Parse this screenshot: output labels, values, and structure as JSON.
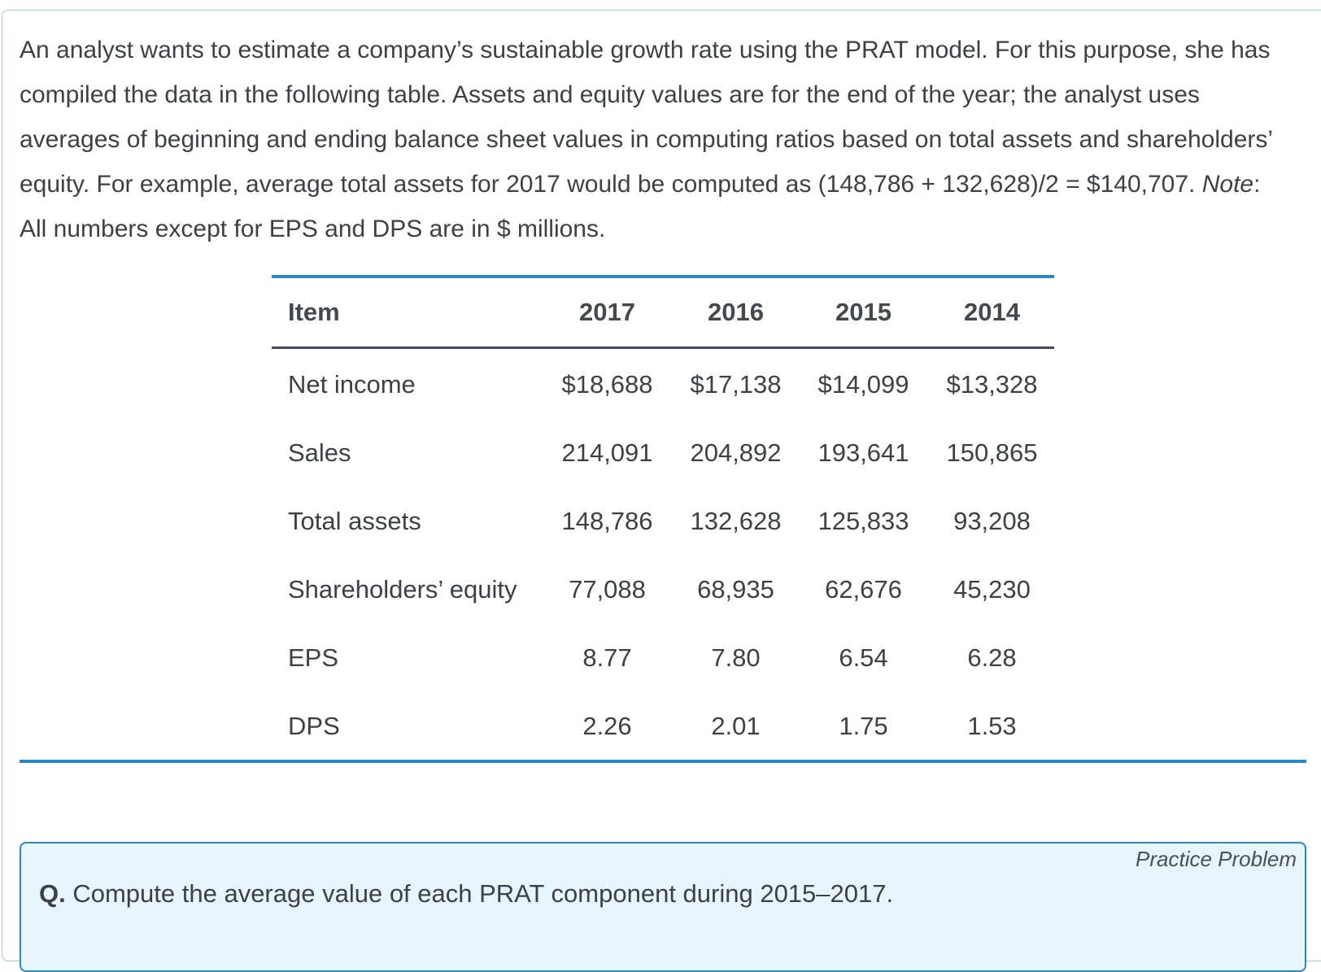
{
  "intro": {
    "part1": "An analyst wants to estimate a company’s sustainable growth rate using the PRAT model. For this purpose, she has compiled the data in the following table. Assets and equity values are for the end of the year; the analyst uses averages of beginning and ending balance sheet values in computing ratios based on total assets and shareholders’ equity. For example, average total assets for 2017 would be computed as (148,786 + 132,628)/2 = $140,707. ",
    "note_label": "Note",
    "part2": ": All numbers except for EPS and DPS are in $ millions."
  },
  "table": {
    "headers": [
      "Item",
      "2017",
      "2016",
      "2015",
      "2014"
    ],
    "rows": [
      {
        "item": "Net income",
        "values": [
          "$18,688",
          "$17,138",
          "$14,099",
          "$13,328"
        ]
      },
      {
        "item": "Sales",
        "values": [
          "214,091",
          "204,892",
          "193,641",
          "150,865"
        ]
      },
      {
        "item": "Total assets",
        "values": [
          "148,786",
          "132,628",
          "125,833",
          "93,208"
        ]
      },
      {
        "item": "Shareholders’ equity",
        "values": [
          "77,088",
          "68,935",
          "62,676",
          "45,230"
        ]
      },
      {
        "item": "EPS",
        "values": [
          "8.77",
          "7.80",
          "6.54",
          "6.28"
        ]
      },
      {
        "item": "DPS",
        "values": [
          "2.26",
          "2.01",
          "1.75",
          "1.53"
        ]
      }
    ]
  },
  "practice": {
    "tag": "Practice Problem",
    "q_label": "Q.",
    "question": " Compute the average value of each PRAT component during 2015–2017."
  }
}
